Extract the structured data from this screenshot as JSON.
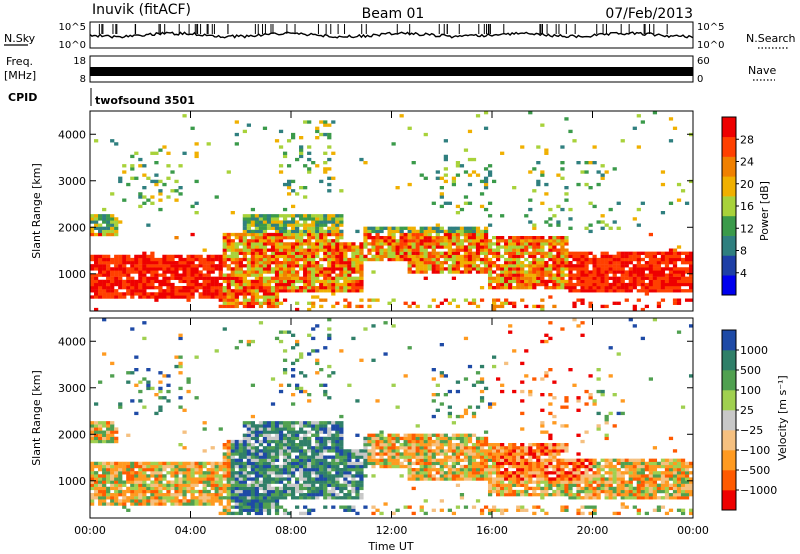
{
  "header": {
    "station": "Inuvik (fitACF)",
    "beam": "Beam 01",
    "date": "07/Feb/2013"
  },
  "strips": {
    "nsky_label": "N.Sky",
    "nsky_ticks": [
      "10^5",
      "10^0"
    ],
    "nsearch_label": "N.Search",
    "freq_label": "Freq.",
    "freq_unit": "[MHz]",
    "freq_ticks": [
      "18",
      "8"
    ],
    "nave_ticks": [
      "60",
      "0"
    ],
    "nave_label": "Nave",
    "cpid_label": "CPID",
    "cpid_value": "twofsound 3501"
  },
  "colors": {
    "power": [
      "#0000ee",
      "#1e3fa6",
      "#2f7f7f",
      "#3a9a4a",
      "#a8d23a",
      "#f0b000",
      "#f08000",
      "#ff4000",
      "#ee0000"
    ],
    "velocity": [
      "#ee0000",
      "#ff5a00",
      "#ff9a20",
      "#f5c080",
      "#c8c8c8",
      "#a0d050",
      "#50a050",
      "#2f7f68",
      "#1e4aa6"
    ]
  },
  "chart_data": [
    {
      "type": "heatmap",
      "name": "power-panel",
      "xlabel": "",
      "ylabel": "Slant Range [km]",
      "x_ticks": [
        "00:00",
        "04:00",
        "08:00",
        "12:00",
        "16:00",
        "20:00",
        "00:00"
      ],
      "y_ticks": [
        1000,
        2000,
        3000,
        4000
      ],
      "ylim": [
        200,
        4500
      ],
      "colorbar": {
        "label": "Power [dB]",
        "ticks": [
          4,
          8,
          12,
          16,
          20,
          24,
          28
        ],
        "range": [
          0,
          32
        ]
      }
    },
    {
      "type": "heatmap",
      "name": "velocity-panel",
      "xlabel": "Time UT",
      "ylabel": "Slant Range [km]",
      "x_ticks": [
        "00:00",
        "04:00",
        "08:00",
        "12:00",
        "16:00",
        "20:00",
        "00:00"
      ],
      "y_ticks": [
        1000,
        2000,
        3000,
        4000
      ],
      "ylim": [
        200,
        4500
      ],
      "colorbar": {
        "label": "Velocity [m s⁻¹]",
        "ticks": [
          "1000",
          "500",
          "100",
          "25",
          "−25",
          "−100",
          "−500",
          "−1000"
        ]
      }
    }
  ]
}
